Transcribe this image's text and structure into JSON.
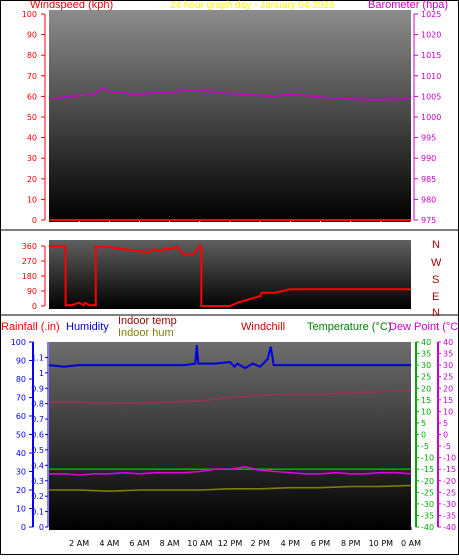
{
  "top_chart": {
    "header": {
      "left_label": "Windspeed (kph)",
      "center_label": "24 hour graph day - January 04 2026",
      "right_label": "Barometer (hpa)"
    },
    "colors": {
      "wind": "#ff0000",
      "barometer": "#cc00cc",
      "header_center": "#ffff00",
      "left_axis": "#ff0000",
      "right_axis": "#cc00cc"
    }
  },
  "mid_chart": {
    "compass_labels": [
      "N",
      "W",
      "S",
      "E",
      "N"
    ],
    "colors": {
      "direction": "#ff0000"
    }
  },
  "bottom_chart": {
    "labels": {
      "rainfall": "Rainfall (.in)",
      "humidity": "Humidity",
      "indoor_temp": "Indoor temp",
      "indoor_hum": "Indoor hum",
      "windchill": "Windchill",
      "temperature": "Temperature (°C)",
      "dew_point": "Dew Point (°C)"
    },
    "colors": {
      "rainfall": "#ff0000",
      "humidity": "#0000cc",
      "indoor_temp": "#990000",
      "indoor_hum": "#808000",
      "windchill": "#cc0000",
      "temperature": "#008000",
      "dew_point": "#cc00cc",
      "rain_axis": "#0000ff",
      "temp_axis": "#00aa00",
      "dew_axis": "#cc00cc"
    }
  },
  "chart_data": [
    {
      "type": "line",
      "x_ticks": [
        "2 AM",
        "4 AM",
        "6 AM",
        "8 AM",
        "10 AM",
        "12 PM",
        "2 PM",
        "4 PM",
        "6 PM",
        "8 PM",
        "10 PM",
        "0 AM"
      ],
      "y_ticks_left": [
        "0",
        "10",
        "20",
        "30",
        "40",
        "50",
        "60",
        "70",
        "80",
        "90",
        "100"
      ],
      "y_ticks_right": [
        "975",
        "980",
        "985",
        "990",
        "995",
        "1000",
        "1005",
        "1010",
        "1015",
        "1020",
        "1025"
      ],
      "ylim_left": [
        0,
        100
      ],
      "ylim_right": [
        975,
        1025
      ],
      "series": [
        {
          "name": "Windspeed (kph)",
          "axis": "left",
          "x": [
            0,
            24
          ],
          "values": [
            0,
            0
          ]
        },
        {
          "name": "Barometer (hpa)",
          "axis": "right",
          "x": [
            0,
            1,
            2,
            3,
            3.5,
            4,
            5,
            6,
            7,
            8,
            9,
            10,
            11,
            12,
            13,
            14,
            15,
            16,
            17,
            18,
            19,
            20,
            21,
            22,
            23,
            24
          ],
          "values": [
            1004.5,
            1004.8,
            1005.2,
            1005.6,
            1007,
            1006.2,
            1005.8,
            1005.5,
            1006,
            1005.8,
            1006.6,
            1006.5,
            1006,
            1005.7,
            1005.6,
            1005.2,
            1005,
            1005.6,
            1005.2,
            1004.8,
            1004.6,
            1004.4,
            1004.2,
            1004.2,
            1004.3,
            1004.6
          ]
        }
      ]
    },
    {
      "type": "line",
      "y_ticks": [
        "0",
        "90",
        "180",
        "270",
        "360"
      ],
      "ylim": [
        0,
        360
      ],
      "series": [
        {
          "name": "Wind direction",
          "x": [
            0,
            1.1,
            1.1,
            1.5,
            2,
            2.3,
            2.4,
            2.7,
            3.1,
            3.1,
            4,
            4.5,
            6,
            6.5,
            7,
            7.4,
            7.6,
            8,
            8.5,
            9,
            9.2,
            9.5,
            10,
            10.1,
            10.1,
            12,
            12.5,
            14,
            14.1,
            15,
            16,
            24
          ],
          "values": [
            360,
            360,
            5,
            5,
            20,
            5,
            20,
            5,
            5,
            355,
            355,
            345,
            330,
            320,
            340,
            330,
            345,
            340,
            355,
            305,
            310,
            305,
            360,
            360,
            0,
            0,
            20,
            60,
            80,
            80,
            100,
            100
          ]
        }
      ]
    },
    {
      "type": "line",
      "x_ticks": [
        "2 AM",
        "4 AM",
        "6 AM",
        "8 AM",
        "10 AM",
        "12 PM",
        "2 PM",
        "4 PM",
        "6 PM",
        "8 PM",
        "10 PM",
        "0 AM"
      ],
      "y_ticks_humidity": [
        "0",
        "10",
        "20",
        "30",
        "40",
        "50",
        "60",
        "70",
        "80",
        "90",
        "100"
      ],
      "y_ticks_rain": [
        "0",
        "0.1",
        "0.2",
        "0.3",
        "0.4",
        "0.5",
        "0.6",
        "0.7",
        "0.8",
        "0.9",
        "1",
        "1.1"
      ],
      "y_ticks_temp": [
        "-40",
        "-35",
        "-30",
        "-25",
        "-20",
        "-15",
        "-10",
        "-5",
        "0",
        "5",
        "10",
        "15",
        "20",
        "25",
        "30",
        "35",
        "40"
      ],
      "ylim_rain": [
        0,
        1.2
      ],
      "ylim_temp": [
        -40,
        40
      ],
      "series": [
        {
          "name": "Humidity",
          "axis": "rain",
          "x": [
            0,
            1,
            2,
            3,
            4,
            5,
            6,
            7,
            8,
            9,
            9.7,
            9.8,
            9.9,
            10.2,
            11,
            12,
            12.3,
            12.5,
            13,
            13.5,
            14,
            14.5,
            14.7,
            14.9,
            15.2,
            16,
            17,
            18,
            19,
            20,
            21,
            22,
            23,
            24
          ],
          "values": [
            1.05,
            1.04,
            1.05,
            1.05,
            1.05,
            1.05,
            1.05,
            1.05,
            1.05,
            1.05,
            1.06,
            1.18,
            1.06,
            1.06,
            1.06,
            1.07,
            1.04,
            1.06,
            1.03,
            1.06,
            1.04,
            1.09,
            1.17,
            1.05,
            1.05,
            1.05,
            1.05,
            1.05,
            1.05,
            1.05,
            1.05,
            1.05,
            1.05,
            1.05
          ]
        },
        {
          "name": "Indoor temp",
          "axis": "temp",
          "x": [
            0,
            2,
            4,
            6,
            8,
            10,
            12,
            14,
            16,
            18,
            20,
            22,
            24
          ],
          "values": [
            14,
            14,
            13.5,
            13.5,
            14,
            14.5,
            16,
            17,
            17.5,
            17.5,
            18,
            18.5,
            19
          ]
        },
        {
          "name": "Temperature (°C)",
          "axis": "temp",
          "x": [
            0,
            24
          ],
          "values": [
            -15,
            -15
          ]
        },
        {
          "name": "Dew Point (°C)",
          "axis": "temp",
          "x": [
            0,
            1,
            2,
            3,
            4,
            5,
            6,
            7,
            8,
            9,
            10,
            11,
            12,
            13,
            14,
            15,
            16,
            17,
            18,
            19,
            20,
            21,
            22,
            23,
            24
          ],
          "values": [
            -17,
            -17,
            -17.5,
            -17,
            -17,
            -16.5,
            -17,
            -16.5,
            -16.5,
            -16.5,
            -16,
            -15,
            -15,
            -14,
            -15.5,
            -16,
            -16.5,
            -17,
            -17,
            -16.5,
            -17,
            -17,
            -16.5,
            -16.5,
            -17
          ]
        },
        {
          "name": "Indoor hum",
          "axis": "temp",
          "x": [
            0,
            2,
            4,
            6,
            8,
            10,
            12,
            14,
            16,
            18,
            20,
            22,
            24
          ],
          "values": [
            -24,
            -24,
            -24.5,
            -24,
            -24,
            -24,
            -23.5,
            -23.5,
            -23,
            -23,
            -22.5,
            -22.5,
            -22
          ]
        }
      ]
    }
  ]
}
